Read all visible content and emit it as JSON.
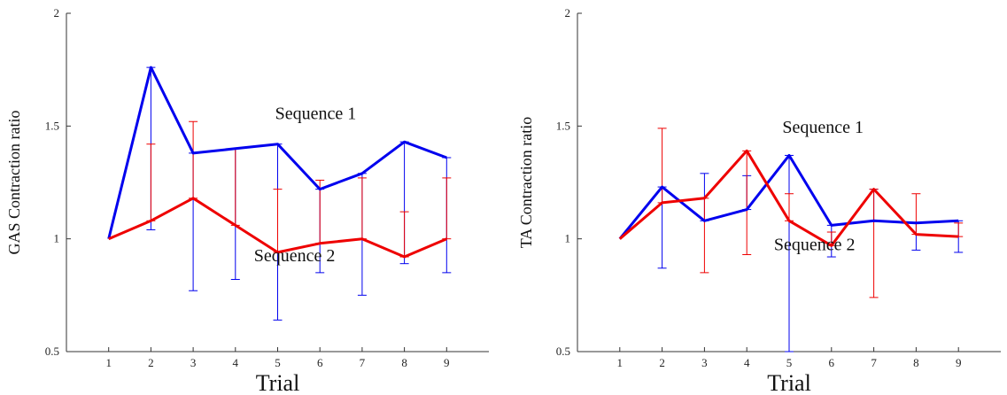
{
  "chart_data": [
    {
      "type": "line",
      "xlabel": "Trial",
      "ylabel": "GAS Contraction ratio",
      "xlim": [
        0,
        10
      ],
      "ylim": [
        0.5,
        2
      ],
      "x": [
        1,
        2,
        3,
        4,
        5,
        6,
        7,
        8,
        9
      ],
      "xticks": [
        "1",
        "2",
        "3",
        "4",
        "5",
        "6",
        "7",
        "8",
        "9"
      ],
      "yticks": [
        "0.5",
        "1",
        "1.5",
        "2"
      ],
      "grid": false,
      "series": [
        {
          "color": "#0000ee",
          "values": [
            1.0,
            1.76,
            1.38,
            1.4,
            1.42,
            1.22,
            1.29,
            1.43,
            1.36
          ],
          "err_low": [
            1.0,
            1.04,
            0.77,
            0.82,
            0.64,
            0.85,
            0.75,
            0.89,
            0.85
          ],
          "err_high": [
            1.0,
            1.76,
            1.38,
            1.4,
            1.42,
            1.22,
            1.29,
            1.43,
            1.36
          ]
        },
        {
          "color": "#ee0000",
          "values": [
            1.0,
            1.08,
            1.18,
            1.06,
            0.94,
            0.98,
            1.0,
            0.92,
            1.0
          ],
          "err_low": [
            1.0,
            1.08,
            1.18,
            1.06,
            0.94,
            0.98,
            1.0,
            0.92,
            1.0
          ],
          "err_high": [
            1.0,
            1.42,
            1.52,
            1.4,
            1.22,
            1.26,
            1.27,
            1.12,
            1.27
          ]
        }
      ],
      "annotations": [
        {
          "text": "Sequence 1",
          "x": 5.9,
          "y": 1.53
        },
        {
          "text": "Sequence 2",
          "x": 5.4,
          "y": 0.9
        }
      ]
    },
    {
      "type": "line",
      "xlabel": "Trial",
      "ylabel": "TA Contraction ratio",
      "xlim": [
        0,
        10
      ],
      "ylim": [
        0.5,
        2
      ],
      "x": [
        1,
        2,
        3,
        4,
        5,
        6,
        7,
        8,
        9
      ],
      "xticks": [
        "1",
        "2",
        "3",
        "4",
        "5",
        "6",
        "7",
        "8",
        "9"
      ],
      "yticks": [
        "0.5",
        "1",
        "1.5",
        "2"
      ],
      "grid": false,
      "series": [
        {
          "color": "#0000ee",
          "values": [
            1.0,
            1.23,
            1.08,
            1.13,
            1.37,
            1.06,
            1.08,
            1.07,
            1.08
          ],
          "err_low": [
            1.0,
            0.87,
            1.08,
            1.13,
            0.5,
            0.92,
            1.08,
            0.95,
            0.94
          ],
          "err_high": [
            1.0,
            1.23,
            1.29,
            1.28,
            1.37,
            1.06,
            1.22,
            1.07,
            1.08
          ]
        },
        {
          "color": "#ee0000",
          "values": [
            1.0,
            1.16,
            1.18,
            1.39,
            1.08,
            0.97,
            1.22,
            1.02,
            1.01
          ],
          "err_low": [
            1.0,
            1.16,
            0.85,
            0.93,
            1.08,
            0.97,
            0.74,
            1.02,
            1.01
          ],
          "err_high": [
            1.0,
            1.49,
            1.18,
            1.39,
            1.2,
            1.03,
            1.22,
            1.2,
            1.07
          ]
        }
      ],
      "annotations": [
        {
          "text": "Sequence 1",
          "x": 5.8,
          "y": 1.47
        },
        {
          "text": "Sequence 2",
          "x": 5.6,
          "y": 0.95
        }
      ]
    }
  ]
}
